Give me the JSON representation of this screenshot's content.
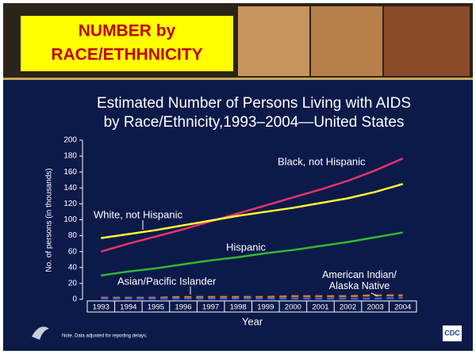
{
  "header": {
    "title_lines": [
      "NUMBER by",
      "RACE/ETHHNICITY"
    ]
  },
  "chart_data": {
    "type": "line",
    "title_lines": [
      "Estimated Number of Persons Living with AIDS",
      "by Race/Ethnicity,1993–2004—United States"
    ],
    "y_label": "No. of persons (in thousands)",
    "x_label": "Year",
    "categories": [
      "1993",
      "1994",
      "1995",
      "1996",
      "1997",
      "1998",
      "1999",
      "2000",
      "2001",
      "2002",
      "2003",
      "2004"
    ],
    "ylim": [
      0,
      200
    ],
    "yticks": [
      0,
      20,
      40,
      60,
      80,
      100,
      120,
      140,
      160,
      180,
      200
    ],
    "series": [
      {
        "name": "Black, not Hispanic",
        "color": "#e8336b",
        "values": [
          60,
          70,
          79,
          88,
          98,
          108,
          118,
          128,
          138,
          149,
          162,
          177
        ]
      },
      {
        "name": "White, not Hispanic",
        "color": "#ffff33",
        "values": [
          77,
          82,
          87,
          93,
          99,
          105,
          110,
          115,
          121,
          127,
          135,
          145
        ]
      },
      {
        "name": "Hispanic",
        "color": "#33b833",
        "values": [
          30,
          35,
          39,
          44,
          49,
          53,
          58,
          62,
          67,
          72,
          78,
          84
        ]
      },
      {
        "name": "Asian/Pacific Islander",
        "color": "#e07a1f",
        "values": [
          2,
          2,
          2,
          3,
          3,
          3,
          3,
          4,
          4,
          4,
          5,
          5
        ]
      },
      {
        "name": "American Indian/ Alaska Native",
        "color": "#3f5fd0",
        "values": [
          1,
          1,
          1,
          1,
          1,
          1,
          1,
          1,
          1,
          1,
          1,
          2
        ]
      }
    ],
    "note": "Note. Data adjusted for reporting delays."
  },
  "footer": {
    "logo": "CDC"
  }
}
